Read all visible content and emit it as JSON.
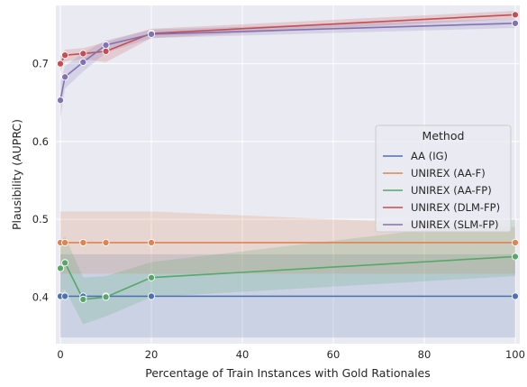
{
  "chart_data": {
    "type": "line",
    "xlabel": "Percentage of Train Instances with Gold Rationales",
    "ylabel": "Plausibility (AUPRC)",
    "xlim": [
      -1,
      101
    ],
    "ylim": [
      0.34,
      0.775
    ],
    "xticks": [
      0,
      20,
      40,
      60,
      80,
      100
    ],
    "yticks": [
      0.4,
      0.5,
      0.6,
      0.7
    ],
    "grid": true,
    "background": "#eaeaf2",
    "legend": {
      "title": "Method",
      "placement": "center-right"
    },
    "x": [
      0,
      1,
      5,
      10,
      20,
      100
    ],
    "series": [
      {
        "name": "AA (IG)",
        "color": "#4c72b0",
        "values": [
          0.401,
          0.401,
          0.401,
          0.401,
          0.401,
          0.401
        ],
        "ci_lower": [
          0.348,
          0.348,
          0.348,
          0.348,
          0.348,
          0.348
        ],
        "ci_upper": [
          0.455,
          0.455,
          0.455,
          0.455,
          0.455,
          0.455
        ]
      },
      {
        "name": "UNIREX (AA-F)",
        "color": "#dd8452",
        "values": [
          0.47,
          0.47,
          0.47,
          0.47,
          0.47,
          0.47
        ],
        "ci_lower": [
          0.43,
          0.43,
          0.43,
          0.43,
          0.43,
          0.43
        ],
        "ci_upper": [
          0.51,
          0.51,
          0.51,
          0.51,
          0.51,
          0.49
        ]
      },
      {
        "name": "UNIREX (AA-FP)",
        "color": "#55a868",
        "values": [
          0.437,
          0.444,
          0.397,
          0.4,
          0.425,
          0.452
        ],
        "ci_lower": [
          0.405,
          0.41,
          0.365,
          0.375,
          0.4,
          0.427
        ],
        "ci_upper": [
          0.47,
          0.478,
          0.425,
          0.427,
          0.445,
          0.5
        ]
      },
      {
        "name": "UNIREX (DLM-FP)",
        "color": "#c44e52",
        "values": [
          0.7,
          0.711,
          0.713,
          0.716,
          0.739,
          0.763
        ],
        "ci_lower": [
          0.69,
          0.703,
          0.706,
          0.702,
          0.733,
          0.758
        ],
        "ci_upper": [
          0.71,
          0.718,
          0.72,
          0.728,
          0.745,
          0.768
        ]
      },
      {
        "name": "UNIREX (SLM-FP)",
        "color": "#8172b3",
        "values": [
          0.653,
          0.683,
          0.702,
          0.724,
          0.738,
          0.752
        ],
        "ci_lower": [
          0.628,
          0.668,
          0.69,
          0.714,
          0.733,
          0.746
        ],
        "ci_upper": [
          0.677,
          0.697,
          0.714,
          0.73,
          0.744,
          0.758
        ]
      }
    ]
  }
}
